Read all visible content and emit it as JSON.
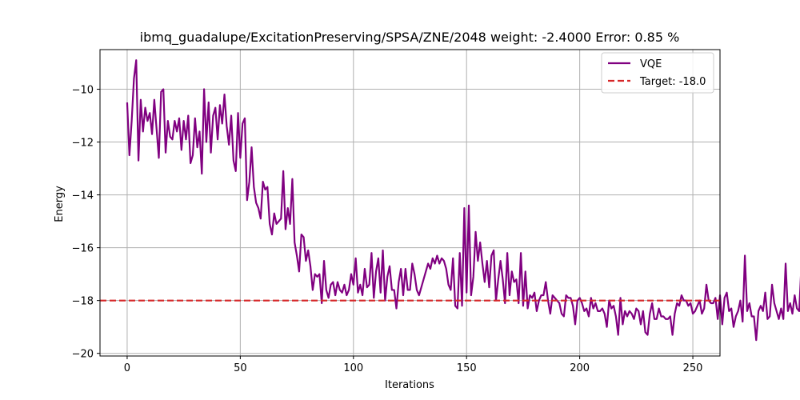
{
  "chart_data": {
    "type": "line",
    "title": "ibmq_guadalupe/ExcitationPreserving/SPSA/ZNE/2048 weight: -2.4000 Error: 0.85 %",
    "xlabel": "Iterations",
    "ylabel": "Energy",
    "xlim": [
      -12,
      262
    ],
    "ylim": [
      -20.1,
      -8.5
    ],
    "xticks": [
      0,
      50,
      100,
      150,
      200,
      250
    ],
    "yticks": [
      -20,
      -18,
      -16,
      -14,
      -12,
      -10
    ],
    "grid": true,
    "legend_position": "top-right",
    "series": [
      {
        "name": "VQE",
        "color": "#800080",
        "style": "solid",
        "x_start": 0,
        "x_step": 1,
        "values": [
          -10.5,
          -12.5,
          -11.2,
          -9.6,
          -8.9,
          -12.7,
          -10.4,
          -11.6,
          -10.7,
          -11.2,
          -10.9,
          -11.7,
          -10.4,
          -11.5,
          -12.6,
          -10.1,
          -10.0,
          -12.4,
          -11.2,
          -11.8,
          -11.9,
          -11.2,
          -11.6,
          -11.1,
          -12.3,
          -11.2,
          -11.9,
          -11.0,
          -12.8,
          -12.5,
          -11.1,
          -12.2,
          -11.6,
          -13.2,
          -10.0,
          -12.0,
          -10.5,
          -12.4,
          -11.0,
          -10.7,
          -11.9,
          -10.6,
          -11.3,
          -10.2,
          -11.4,
          -12.1,
          -11.0,
          -12.7,
          -13.1,
          -10.9,
          -12.6,
          -11.3,
          -11.1,
          -14.2,
          -13.5,
          -12.2,
          -13.7,
          -14.3,
          -14.5,
          -14.9,
          -13.5,
          -13.8,
          -13.7,
          -15.1,
          -15.5,
          -14.7,
          -15.1,
          -15.0,
          -14.9,
          -13.1,
          -15.3,
          -14.5,
          -15.1,
          -13.4,
          -15.8,
          -16.3,
          -16.9,
          -15.5,
          -15.6,
          -16.5,
          -16.1,
          -16.7,
          -17.6,
          -17.0,
          -17.1,
          -17.0,
          -18.1,
          -16.5,
          -17.6,
          -17.9,
          -17.4,
          -17.3,
          -17.8,
          -17.3,
          -17.6,
          -17.7,
          -17.4,
          -17.8,
          -17.6,
          -17.0,
          -17.4,
          -16.4,
          -17.7,
          -17.4,
          -17.8,
          -16.8,
          -17.5,
          -17.4,
          -16.2,
          -17.9,
          -16.9,
          -16.4,
          -17.7,
          -16.1,
          -18.0,
          -17.1,
          -16.7,
          -17.6,
          -17.6,
          -18.3,
          -17.3,
          -16.8,
          -17.8,
          -16.8,
          -17.6,
          -17.6,
          -16.6,
          -17.0,
          -17.6,
          -17.8,
          -17.5,
          -17.2,
          -16.9,
          -16.6,
          -16.8,
          -16.4,
          -16.6,
          -16.3,
          -16.6,
          -16.4,
          -16.5,
          -16.8,
          -17.4,
          -17.6,
          -16.4,
          -18.2,
          -18.3,
          -16.2,
          -18.2,
          -14.5,
          -17.7,
          -14.4,
          -17.8,
          -17.1,
          -15.4,
          -16.5,
          -15.8,
          -16.6,
          -17.3,
          -16.5,
          -17.5,
          -16.3,
          -16.1,
          -18.0,
          -17.2,
          -16.5,
          -17.2,
          -18.1,
          -16.2,
          -17.8,
          -16.9,
          -17.3,
          -17.2,
          -18.1,
          -16.2,
          -18.2,
          -16.9,
          -18.3,
          -17.8,
          -17.9,
          -17.7,
          -18.4,
          -18.0,
          -17.8,
          -17.8,
          -17.3,
          -18.0,
          -18.5,
          -17.8,
          -17.9,
          -18.0,
          -18.1,
          -18.5,
          -18.6,
          -17.8,
          -17.9,
          -17.9,
          -18.2,
          -18.9,
          -18.0,
          -17.9,
          -18.1,
          -18.4,
          -18.3,
          -18.6,
          -17.9,
          -18.3,
          -18.1,
          -18.4,
          -18.4,
          -18.3,
          -18.5,
          -19.0,
          -18.0,
          -18.3,
          -18.2,
          -18.6,
          -19.3,
          -17.9,
          -18.9,
          -18.4,
          -18.6,
          -18.4,
          -18.5,
          -18.7,
          -18.3,
          -18.4,
          -18.9,
          -18.4,
          -19.2,
          -19.3,
          -18.5,
          -18.1,
          -18.7,
          -18.7,
          -18.3,
          -18.6,
          -18.6,
          -18.7,
          -18.7,
          -18.6,
          -19.3,
          -18.5,
          -18.1,
          -18.2,
          -17.8,
          -18.0,
          -18.0,
          -18.2,
          -18.1,
          -18.5,
          -18.4,
          -18.2,
          -18.0,
          -18.5,
          -18.3,
          -17.4,
          -18.0,
          -18.1,
          -18.1,
          -17.9,
          -18.7,
          -17.8,
          -18.9,
          -17.9,
          -17.7,
          -18.4,
          -18.3,
          -19.0,
          -18.6,
          -18.4,
          -18.0,
          -18.8,
          -16.3,
          -18.4,
          -18.1,
          -18.6,
          -18.6,
          -19.5,
          -18.4,
          -18.2,
          -18.4,
          -17.7,
          -18.7,
          -18.6,
          -17.4,
          -18.1,
          -18.4,
          -18.7,
          -18.3,
          -18.7,
          -16.6,
          -18.4,
          -18.1,
          -18.5,
          -17.8,
          -18.3,
          -18.4,
          -16.6,
          -18.5,
          -17.9,
          -18.3,
          -18.6,
          -18.9,
          -18.6,
          -18.1,
          -17.3,
          -18.2,
          -18.5,
          -18.7,
          -18.3,
          -18.5,
          -19.5,
          -18.9,
          -18.5,
          -18.2,
          -18.7,
          -18.5,
          -18.4,
          -18.7,
          -18.8,
          -18.6,
          -18.5,
          -18.4,
          -18.1
        ]
      },
      {
        "name": "Target: -18.0",
        "color": "#d62728",
        "style": "dashed",
        "hline": -18.0
      }
    ]
  }
}
